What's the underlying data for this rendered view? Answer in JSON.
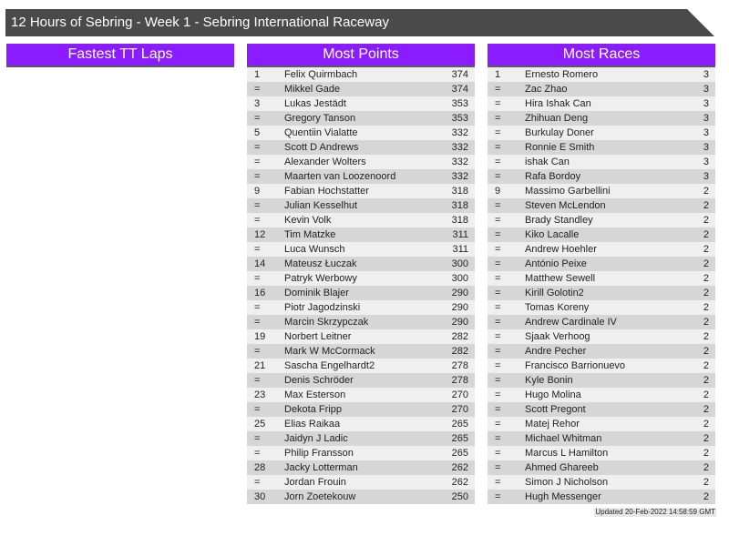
{
  "title": "12 Hours of Sebring - Week 1 - Sebring International Raceway",
  "accent_color": "#8a1cff",
  "panels": [
    {
      "header": "Fastest TT Laps",
      "rows": []
    },
    {
      "header": "Most Points",
      "rows": [
        [
          "1",
          "Felix Quirmbach",
          "374"
        ],
        [
          "=",
          "Mikkel Gade",
          "374"
        ],
        [
          "3",
          "Lukas Jestädt",
          "353"
        ],
        [
          "=",
          "Gregory Tanson",
          "353"
        ],
        [
          "5",
          "Quentiin Vialatte",
          "332"
        ],
        [
          "=",
          "Scott D Andrews",
          "332"
        ],
        [
          "=",
          "Alexander Wolters",
          "332"
        ],
        [
          "=",
          "Maarten van Loozenoord",
          "332"
        ],
        [
          "9",
          "Fabian Hochstatter",
          "318"
        ],
        [
          "=",
          "Julian Kesselhut",
          "318"
        ],
        [
          "=",
          "Kevin Volk",
          "318"
        ],
        [
          "12",
          "Tim Matzke",
          "311"
        ],
        [
          "=",
          "Luca Wunsch",
          "311"
        ],
        [
          "14",
          "Mateusz Łuczak",
          "300"
        ],
        [
          "=",
          "Patryk Werbowy",
          "300"
        ],
        [
          "16",
          "Dominik Blajer",
          "290"
        ],
        [
          "=",
          "Piotr Jagodzinski",
          "290"
        ],
        [
          "=",
          "Marcin Skrzypczak",
          "290"
        ],
        [
          "19",
          "Norbert Leitner",
          "282"
        ],
        [
          "=",
          "Mark W McCormack",
          "282"
        ],
        [
          "21",
          "Sascha Engelhardt2",
          "278"
        ],
        [
          "=",
          "Denis Schröder",
          "278"
        ],
        [
          "23",
          "Max Esterson",
          "270"
        ],
        [
          "=",
          "Dekota Fripp",
          "270"
        ],
        [
          "25",
          "Elias Raikaa",
          "265"
        ],
        [
          "=",
          "Jaidyn J Ladic",
          "265"
        ],
        [
          "=",
          "Philip Fransson",
          "265"
        ],
        [
          "28",
          "Jacky Lotterman",
          "262"
        ],
        [
          "=",
          "Jordan Frouin",
          "262"
        ],
        [
          "30",
          "Jorn Zoetekouw",
          "250"
        ]
      ]
    },
    {
      "header": "Most Races",
      "rows": [
        [
          "1",
          "Ernesto Romero",
          "3"
        ],
        [
          "=",
          "Zac Zhao",
          "3"
        ],
        [
          "=",
          "Hira Ishak Can",
          "3"
        ],
        [
          "=",
          "Zhihuan Deng",
          "3"
        ],
        [
          "=",
          "Burkulay Doner",
          "3"
        ],
        [
          "=",
          "Ronnie E Smith",
          "3"
        ],
        [
          "=",
          "ishak Can",
          "3"
        ],
        [
          "=",
          "Rafa Bordoy",
          "3"
        ],
        [
          "9",
          "Massimo Garbellini",
          "2"
        ],
        [
          "=",
          "Steven McLendon",
          "2"
        ],
        [
          "=",
          "Brady Standley",
          "2"
        ],
        [
          "=",
          "Kiko Lacalle",
          "2"
        ],
        [
          "=",
          "Andrew Hoehler",
          "2"
        ],
        [
          "=",
          "António Peixe",
          "2"
        ],
        [
          "=",
          "Matthew Sewell",
          "2"
        ],
        [
          "=",
          "Kirill Golotin2",
          "2"
        ],
        [
          "=",
          "Tomas Koreny",
          "2"
        ],
        [
          "=",
          "Andrew Cardinale IV",
          "2"
        ],
        [
          "=",
          "Sjaak Verhoog",
          "2"
        ],
        [
          "=",
          "Andre Pecher",
          "2"
        ],
        [
          "=",
          "Francisco Barrionuevo",
          "2"
        ],
        [
          "=",
          "Kyle Bonin",
          "2"
        ],
        [
          "=",
          "Hugo Molina",
          "2"
        ],
        [
          "=",
          "Scott Pregont",
          "2"
        ],
        [
          "=",
          "Matej Rehor",
          "2"
        ],
        [
          "=",
          "Michael Whitman",
          "2"
        ],
        [
          "=",
          "Marcus L Hamilton",
          "2"
        ],
        [
          "=",
          "Ahmed Ghareeb",
          "2"
        ],
        [
          "=",
          "Simon J Nicholson",
          "2"
        ],
        [
          "=",
          "Hugh Messenger",
          "2"
        ]
      ]
    }
  ],
  "footer": "Updated 20-Feb-2022 14:58:59 GMT"
}
